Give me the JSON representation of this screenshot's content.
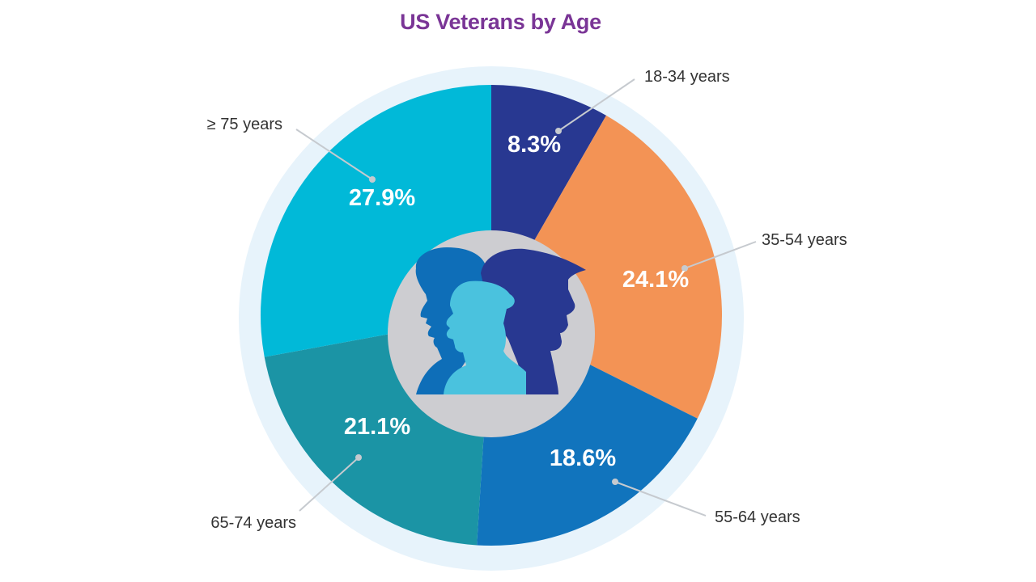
{
  "chart_data": {
    "type": "pie",
    "title": "US Veterans by Age",
    "categories": [
      "18-34 years",
      "35-54 years",
      "55-64 years",
      "65-74 years",
      "≥ 75 years"
    ],
    "values": [
      8.3,
      24.1,
      18.6,
      21.1,
      27.9
    ],
    "value_labels": [
      "8.3%",
      "24.1%",
      "18.6%",
      "21.1%",
      "27.9%"
    ],
    "unit": "%",
    "start": "12 o'clock, clockwise",
    "colors": [
      "#283891",
      "#f39355",
      "#1174bd",
      "#1b94a5",
      "#01b9d8"
    ],
    "title_color": "#7a3596",
    "center_image": "veterans-silhouettes-icon",
    "center_colors": [
      "#0e6eb8",
      "#283891",
      "#4ac2de",
      "#cdcdd1"
    ],
    "ring_color": "#e7f3fb",
    "legend": "callout labels with leader lines"
  }
}
